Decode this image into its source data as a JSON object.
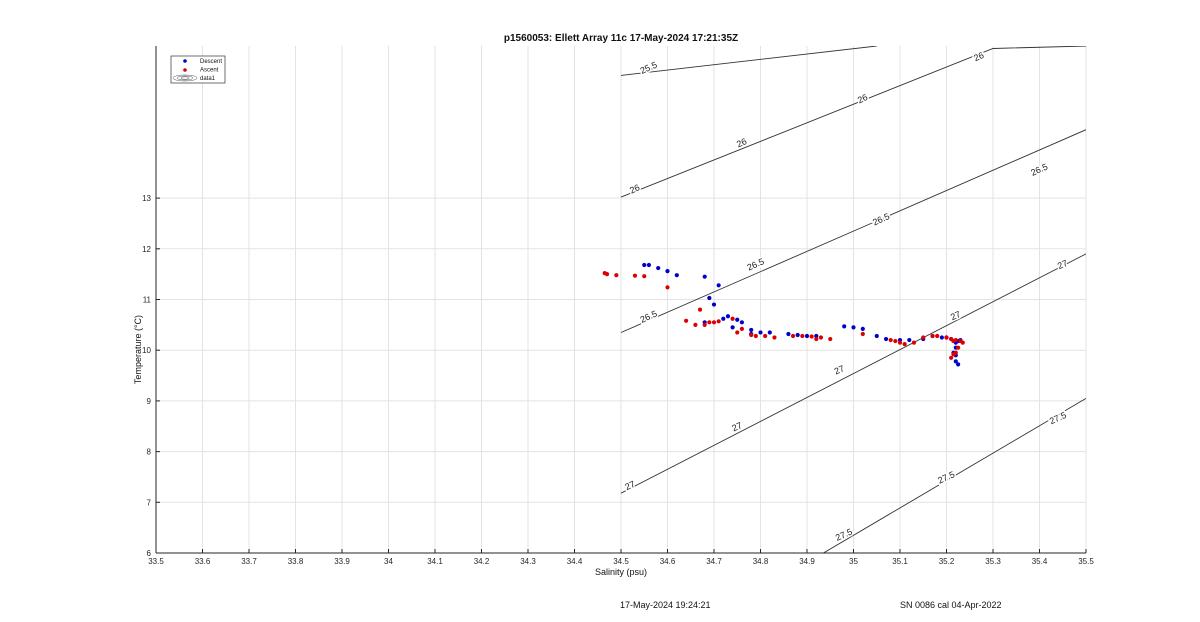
{
  "chart_data": {
    "type": "scatter",
    "title": "p1560053: Ellett Array 11c 17-May-2024 17:21:35Z",
    "xlabel": "Salinity (psu)",
    "ylabel": "Temperature (°C)",
    "xlim": [
      33.5,
      35.5
    ],
    "ylim": [
      6,
      16
    ],
    "xticks": [
      "33.5",
      "33.6",
      "33.7",
      "33.8",
      "33.9",
      "34",
      "34.1",
      "34.2",
      "34.3",
      "34.4",
      "34.5",
      "34.6",
      "34.7",
      "34.8",
      "34.9",
      "35",
      "35.1",
      "35.2",
      "35.3",
      "35.4",
      "35.5"
    ],
    "yticks": [
      "6",
      "7",
      "8",
      "9",
      "10",
      "11",
      "12",
      "13"
    ],
    "grid": true,
    "legend_position": "top-left",
    "legend": [
      "Descent",
      "Ascent",
      "data1"
    ],
    "colors": {
      "descent": "#0000cc",
      "ascent": "#dd0000",
      "contour": "#333333",
      "grid": "#e3e3e3"
    },
    "series": [
      {
        "name": "Descent",
        "x": [
          34.55,
          34.56,
          34.58,
          34.6,
          34.62,
          34.68,
          34.71,
          34.69,
          34.7,
          34.68,
          34.72,
          34.73,
          34.74,
          34.75,
          34.76,
          34.78,
          34.78,
          34.8,
          34.82,
          34.86,
          34.88,
          34.9,
          34.92,
          34.98,
          35.0,
          35.02,
          35.05,
          35.07,
          35.1,
          35.12,
          35.15,
          35.17,
          35.19,
          35.2,
          35.21,
          35.22,
          35.22,
          35.225,
          35.22,
          35.215,
          35.22,
          35.225,
          35.23
        ],
        "y": [
          11.68,
          11.68,
          11.62,
          11.56,
          11.48,
          11.45,
          11.28,
          11.03,
          10.9,
          10.55,
          10.62,
          10.67,
          10.45,
          10.6,
          10.55,
          10.4,
          10.32,
          10.35,
          10.35,
          10.32,
          10.3,
          10.28,
          10.28,
          10.47,
          10.45,
          10.42,
          10.28,
          10.22,
          10.2,
          10.2,
          10.22,
          10.28,
          10.25,
          10.25,
          10.22,
          10.05,
          9.9,
          9.72,
          9.78,
          9.95,
          10.15,
          10.18,
          10.2
        ]
      },
      {
        "name": "Ascent",
        "x": [
          34.465,
          34.47,
          34.49,
          34.53,
          34.55,
          34.6,
          34.64,
          34.66,
          34.67,
          34.68,
          34.69,
          34.7,
          34.71,
          34.74,
          34.75,
          34.76,
          34.78,
          34.79,
          34.81,
          34.83,
          34.87,
          34.89,
          34.91,
          34.92,
          34.93,
          34.95,
          35.02,
          35.08,
          35.09,
          35.1,
          35.11,
          35.13,
          35.15,
          35.17,
          35.18,
          35.2,
          35.21,
          35.215,
          35.22,
          35.23,
          35.235,
          35.225,
          35.215,
          35.21,
          35.22
        ],
        "y": [
          11.52,
          11.5,
          11.48,
          11.47,
          11.46,
          11.24,
          10.58,
          10.5,
          10.8,
          10.5,
          10.55,
          10.55,
          10.57,
          10.62,
          10.35,
          10.42,
          10.3,
          10.28,
          10.28,
          10.25,
          10.28,
          10.28,
          10.27,
          10.22,
          10.25,
          10.22,
          10.32,
          10.2,
          10.18,
          10.15,
          10.12,
          10.15,
          10.25,
          10.28,
          10.28,
          10.25,
          10.22,
          10.18,
          10.2,
          10.18,
          10.15,
          10.05,
          9.92,
          9.85,
          9.95
        ]
      }
    ],
    "contours": [
      {
        "level": "25.5",
        "points": [
          [
            34.5,
            15.42
          ],
          [
            35.05,
            16.0
          ]
        ]
      },
      {
        "level": "26",
        "points": [
          [
            34.5,
            13.02
          ],
          [
            35.3,
            15.95
          ],
          [
            35.5,
            16.0
          ]
        ]
      },
      {
        "level": "26.5",
        "points": [
          [
            34.5,
            10.35
          ],
          [
            35.5,
            14.35
          ]
        ]
      },
      {
        "level": "27",
        "points": [
          [
            34.5,
            7.18
          ],
          [
            35.5,
            11.9
          ]
        ]
      },
      {
        "level": "27.5",
        "points": [
          [
            34.93,
            5.97
          ],
          [
            35.5,
            9.05
          ]
        ]
      }
    ],
    "contour_labels": [
      {
        "text": "25.5",
        "x": 34.56,
        "y": 15.56
      },
      {
        "text": "26",
        "x": 35.27,
        "y": 15.78
      },
      {
        "text": "26",
        "x": 35.02,
        "y": 14.95
      },
      {
        "text": "26",
        "x": 34.76,
        "y": 14.08
      },
      {
        "text": "26",
        "x": 34.53,
        "y": 13.17
      },
      {
        "text": "26.5",
        "x": 35.4,
        "y": 13.55
      },
      {
        "text": "26.5",
        "x": 35.06,
        "y": 12.57
      },
      {
        "text": "26.5",
        "x": 34.79,
        "y": 11.68
      },
      {
        "text": "26.5",
        "x": 34.56,
        "y": 10.65
      },
      {
        "text": "27",
        "x": 35.45,
        "y": 11.68
      },
      {
        "text": "27",
        "x": 35.22,
        "y": 10.67
      },
      {
        "text": "27",
        "x": 34.97,
        "y": 9.6
      },
      {
        "text": "27",
        "x": 34.75,
        "y": 8.48
      },
      {
        "text": "27",
        "x": 34.52,
        "y": 7.32
      },
      {
        "text": "27.5",
        "x": 35.44,
        "y": 8.65
      },
      {
        "text": "27.5",
        "x": 35.2,
        "y": 7.48
      },
      {
        "text": "27.5",
        "x": 34.98,
        "y": 6.35
      }
    ]
  },
  "footer": {
    "timestamp": "17-May-2024 19:24:21",
    "calibration": "SN 0086 cal 04-Apr-2022"
  }
}
